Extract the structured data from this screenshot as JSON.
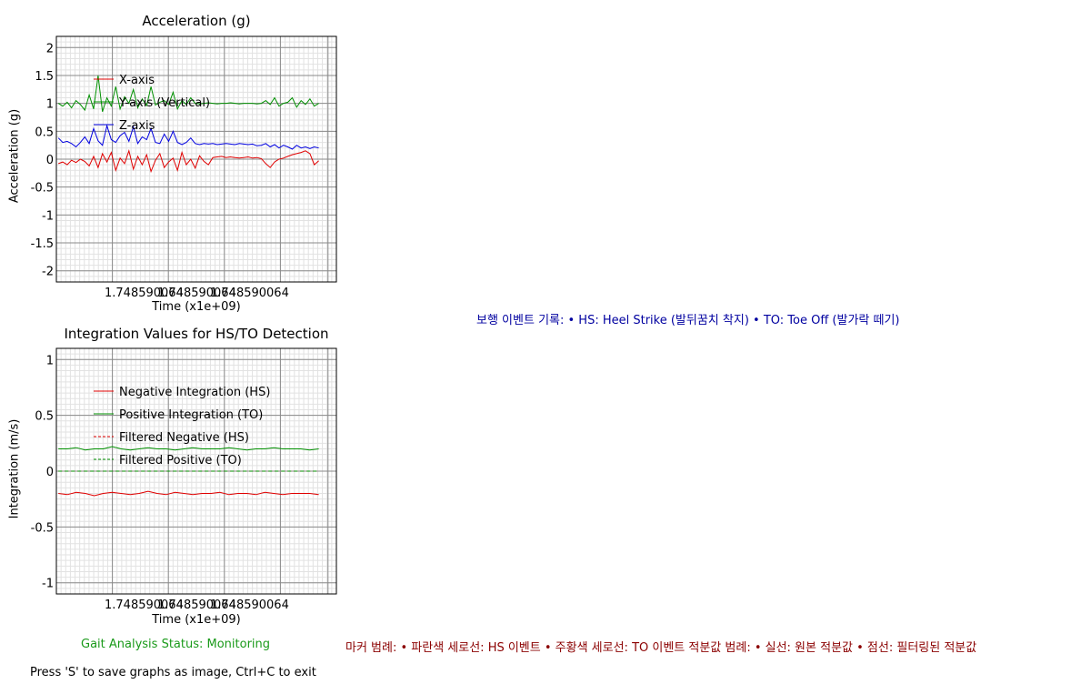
{
  "chart_data": [
    {
      "type": "line",
      "title": "Acceleration (g)",
      "xlabel": "Time (x1e+09)",
      "ylabel": "Acceleration (g)",
      "xtick_labels": [
        "1.748590064",
        "1.748590064",
        "1.748590064"
      ],
      "ylim": [
        -2.2,
        2.2
      ],
      "yticks": [
        2,
        1.5,
        1,
        0.5,
        0,
        -0.5,
        -1,
        -1.5,
        -2
      ],
      "grid": true,
      "legend": "top-left",
      "series": [
        {
          "name": "X-axis",
          "color": "#e00000",
          "style": "solid",
          "values": [
            -0.08,
            -0.05,
            -0.1,
            -0.02,
            -0.06,
            0.0,
            -0.04,
            -0.12,
            0.05,
            -0.15,
            0.1,
            -0.05,
            0.12,
            -0.2,
            0.02,
            -0.08,
            0.15,
            -0.18,
            0.05,
            -0.1,
            0.08,
            -0.22,
            -0.02,
            0.1,
            -0.15,
            -0.05,
            0.02,
            -0.2,
            0.12,
            -0.1,
            0.0,
            -0.16,
            0.06,
            -0.04,
            -0.1,
            0.03,
            0.04,
            0.05,
            0.03,
            0.04,
            0.03,
            0.02,
            0.03,
            0.04,
            0.02,
            0.03,
            0.01,
            -0.08,
            -0.15,
            -0.05,
            0.0,
            0.02,
            0.05,
            0.08,
            0.1,
            0.12,
            0.15,
            0.1,
            -0.1,
            -0.03
          ]
        },
        {
          "name": "Y-axis (Vertical)",
          "color": "#009000",
          "style": "solid",
          "values": [
            1.0,
            0.95,
            1.02,
            0.92,
            1.05,
            0.98,
            0.88,
            1.15,
            0.9,
            1.5,
            0.85,
            1.1,
            0.95,
            1.3,
            0.9,
            1.12,
            1.0,
            1.25,
            0.92,
            1.08,
            0.96,
            1.3,
            0.97,
            1.02,
            1.05,
            0.98,
            1.2,
            0.9,
            1.05,
            0.98,
            1.1,
            1.0,
            0.99,
            1.0,
            1.01,
            1.0,
            0.99,
            1.0,
            1.0,
            1.01,
            1.0,
            0.99,
            1.0,
            1.0,
            1.0,
            0.99,
            1.0,
            1.05,
            0.98,
            1.1,
            0.95,
            1.0,
            1.02,
            1.1,
            0.93,
            1.05,
            0.98,
            1.08,
            0.95,
            1.0
          ]
        },
        {
          "name": "Z-axis",
          "color": "#0000e0",
          "style": "solid",
          "values": [
            0.38,
            0.3,
            0.32,
            0.28,
            0.22,
            0.3,
            0.4,
            0.28,
            0.55,
            0.33,
            0.25,
            0.6,
            0.35,
            0.3,
            0.42,
            0.48,
            0.32,
            0.58,
            0.28,
            0.4,
            0.35,
            0.55,
            0.3,
            0.28,
            0.45,
            0.32,
            0.5,
            0.3,
            0.26,
            0.3,
            0.38,
            0.28,
            0.26,
            0.28,
            0.27,
            0.28,
            0.26,
            0.27,
            0.28,
            0.27,
            0.26,
            0.28,
            0.27,
            0.26,
            0.27,
            0.24,
            0.25,
            0.28,
            0.22,
            0.26,
            0.2,
            0.25,
            0.22,
            0.18,
            0.25,
            0.2,
            0.22,
            0.19,
            0.22,
            0.2
          ]
        }
      ]
    },
    {
      "type": "line",
      "title": "Integration Values for HS/TO Detection",
      "xlabel": "Time (x1e+09)",
      "ylabel": "Integration (m/s)",
      "xtick_labels": [
        "1.748590064",
        "1.748590064",
        "1.748590064"
      ],
      "ylim": [
        -1.1,
        1.1
      ],
      "yticks": [
        1.0,
        0.5,
        0,
        -0.5,
        -1.0
      ],
      "grid": true,
      "legend": "top-left",
      "series": [
        {
          "name": "Negative Integration (HS)",
          "color": "#e00000",
          "style": "solid",
          "values": [
            -0.2,
            -0.21,
            -0.19,
            -0.2,
            -0.22,
            -0.2,
            -0.19,
            -0.2,
            -0.21,
            -0.2,
            -0.18,
            -0.2,
            -0.21,
            -0.19,
            -0.2,
            -0.21,
            -0.2,
            -0.2,
            -0.19,
            -0.21,
            -0.2,
            -0.2,
            -0.21,
            -0.19,
            -0.2,
            -0.21,
            -0.2,
            -0.2,
            -0.2,
            -0.21
          ]
        },
        {
          "name": "Positive Integration (TO)",
          "color": "#009000",
          "style": "solid",
          "values": [
            0.2,
            0.2,
            0.21,
            0.19,
            0.2,
            0.2,
            0.22,
            0.2,
            0.19,
            0.2,
            0.21,
            0.2,
            0.2,
            0.19,
            0.2,
            0.21,
            0.2,
            0.2,
            0.2,
            0.21,
            0.2,
            0.19,
            0.2,
            0.2,
            0.21,
            0.2,
            0.2,
            0.2,
            0.19,
            0.2
          ]
        },
        {
          "name": "Filtered Negative (HS)",
          "color": "#e00000",
          "style": "dashed",
          "values": [
            0,
            0,
            0,
            0,
            0,
            0,
            0,
            0,
            0,
            0,
            0,
            0,
            0,
            0,
            0,
            0,
            0,
            0,
            0,
            0,
            0,
            0,
            0,
            0,
            0,
            0,
            0,
            0,
            0,
            0
          ]
        },
        {
          "name": "Filtered Positive (TO)",
          "color": "#009000",
          "style": "dashed",
          "values": [
            0,
            0,
            0,
            0,
            0,
            0,
            0,
            0,
            0,
            0,
            0,
            0,
            0,
            0,
            0,
            0,
            0,
            0,
            0,
            0,
            0,
            0,
            0,
            0,
            0,
            0,
            0,
            0,
            0,
            0
          ]
        }
      ]
    }
  ],
  "event_log": "보행 이벤트 기록: • HS: Heel Strike (발뒤꿈치 착지) • TO: Toe Off (발가락 떼기)",
  "marker_legend": "마커 범례: • 파란색 세로선: HS 이벤트 • 주황색 세로선: TO 이벤트 적분값 범례: • 실선: 원본 적분값 • 점선: 필터링된 적분값",
  "status": "Gait Analysis Status: Monitoring",
  "hint": "Press 'S' to save graphs as image, Ctrl+C to exit"
}
